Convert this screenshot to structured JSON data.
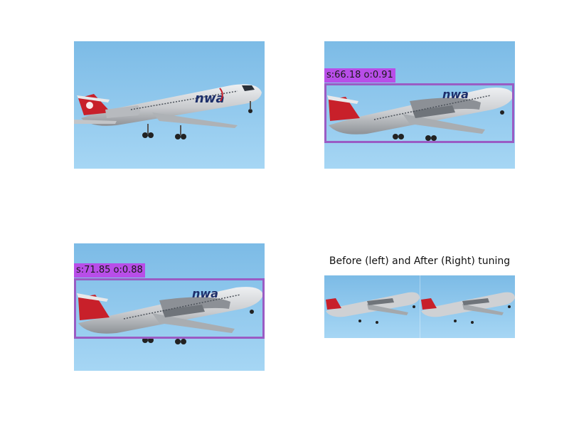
{
  "colors": {
    "sky_top": "#7cbbe6",
    "sky_bottom": "#a6d6f4",
    "fuselage": "#d9dadc",
    "fuselage_shadow": "#9fa3a8",
    "tail_red": "#c8202a",
    "nwa_blue": "#1d2f6b",
    "box_border": "#9a5cc4",
    "label_bg": "#b84ee8"
  },
  "panels": {
    "original": {
      "name": "original-image"
    },
    "detection_before": {
      "name": "detection-before",
      "label": "s:66.18 o:0.91"
    },
    "detection_after": {
      "name": "detection-after",
      "label": "s:71.85 o:0.88"
    },
    "comparison": {
      "caption": "Before (left) and After (Right) tuning"
    }
  },
  "livery": {
    "logo_text": "nwa"
  }
}
